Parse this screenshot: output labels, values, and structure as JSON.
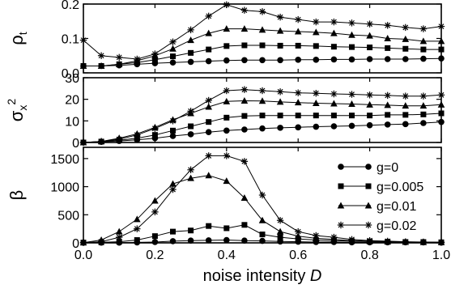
{
  "chart_data": {
    "type": "line",
    "x": [
      0.0,
      0.05,
      0.1,
      0.15,
      0.2,
      0.25,
      0.3,
      0.35,
      0.4,
      0.45,
      0.5,
      0.55,
      0.6,
      0.65,
      0.7,
      0.75,
      0.8,
      0.85,
      0.9,
      0.95,
      1.0
    ],
    "xlabel_main": "noise intensity ",
    "xlabel_var": "D",
    "xlim": [
      0.0,
      1.0
    ],
    "xticks": [
      0.0,
      0.2,
      0.4,
      0.6,
      0.8,
      1.0
    ],
    "xtick_labels": [
      "0.0",
      "0.2",
      "0.4",
      "0.6",
      "0.8",
      "1.0"
    ],
    "legend_position": "right",
    "series_styles": [
      {
        "marker": "circle"
      },
      {
        "marker": "square"
      },
      {
        "marker": "triangle"
      },
      {
        "marker": "star"
      }
    ],
    "legend": [
      "g=0",
      "g=0.005",
      "g=0.01",
      "g=0.02"
    ],
    "panels": [
      {
        "ylabel_main": "ρ",
        "ylabel_sub": "t",
        "ylim": [
          0,
          0.2
        ],
        "yticks": [
          0.0,
          0.1,
          0.2
        ],
        "ytick_labels": [
          "0.0",
          "0.1",
          "0.2"
        ],
        "series": [
          {
            "values": [
              0.02,
              0.02,
              0.022,
              0.025,
              0.028,
              0.03,
              0.032,
              0.034,
              0.036,
              0.037,
              0.037,
              0.037,
              0.038,
              0.038,
              0.039,
              0.039,
              0.04,
              0.04,
              0.04,
              0.041,
              0.042
            ]
          },
          {
            "values": [
              0.02,
              0.02,
              0.025,
              0.03,
              0.038,
              0.048,
              0.058,
              0.068,
              0.078,
              0.08,
              0.08,
              0.079,
              0.079,
              0.078,
              0.076,
              0.075,
              0.074,
              0.072,
              0.07,
              0.068,
              0.068
            ]
          },
          {
            "values": [
              0.02,
              0.02,
              0.025,
              0.035,
              0.05,
              0.07,
              0.095,
              0.115,
              0.128,
              0.128,
              0.125,
              0.122,
              0.12,
              0.118,
              0.115,
              0.11,
              0.108,
              0.1,
              0.098,
              0.092,
              0.092
            ]
          },
          {
            "values": [
              0.095,
              0.05,
              0.045,
              0.04,
              0.055,
              0.09,
              0.125,
              0.165,
              0.198,
              0.182,
              0.178,
              0.162,
              0.155,
              0.148,
              0.148,
              0.145,
              0.142,
              0.138,
              0.132,
              0.128,
              0.135
            ]
          }
        ]
      },
      {
        "ylabel_main": "σ",
        "ylabel_sub": "x",
        "ylabel_sup": "2",
        "ylim": [
          0,
          30
        ],
        "yticks": [
          0,
          10,
          20,
          30
        ],
        "ytick_labels": [
          "0",
          "10",
          "20",
          "30"
        ],
        "series": [
          {
            "values": [
              0,
              0.3,
              0.7,
              1.2,
              2.0,
              3.0,
              3.8,
              4.8,
              5.5,
              6.0,
              6.5,
              6.8,
              7.0,
              7.3,
              7.5,
              7.7,
              8.0,
              8.3,
              8.5,
              9.0,
              9.5
            ]
          },
          {
            "values": [
              0,
              0.4,
              1.0,
              2.0,
              3.5,
              5.5,
              7.5,
              9.5,
              11.5,
              12.3,
              12.5,
              12.5,
              12.5,
              12.5,
              12.5,
              12.5,
              12.5,
              12.8,
              12.8,
              13.0,
              13.5
            ]
          },
          {
            "values": [
              0,
              0.5,
              2.0,
              4.0,
              7.0,
              10.5,
              13.5,
              16.5,
              19.0,
              19.3,
              19.2,
              18.8,
              18.5,
              18.2,
              18.0,
              17.8,
              17.5,
              17.3,
              17.0,
              17.0,
              17.5
            ]
          },
          {
            "values": [
              0,
              0.5,
              1.5,
              3.5,
              6.5,
              10.0,
              14.5,
              19.5,
              24.0,
              24.5,
              24.0,
              23.5,
              23.0,
              22.8,
              22.5,
              22.3,
              22.0,
              21.8,
              21.5,
              21.5,
              22.0
            ]
          }
        ]
      },
      {
        "ylabel_main": "β",
        "ylim": [
          0,
          1700
        ],
        "yticks": [
          0,
          500,
          1000,
          1500
        ],
        "ytick_labels": [
          "0",
          "500",
          "1000",
          "1500"
        ],
        "series": [
          {
            "values": [
              5,
              5,
              5,
              8,
              15,
              30,
              40,
              45,
              50,
              40,
              35,
              25,
              20,
              15,
              15,
              10,
              10,
              10,
              10,
              10,
              5
            ]
          },
          {
            "values": [
              5,
              10,
              20,
              50,
              120,
              200,
              220,
              300,
              260,
              320,
              150,
              100,
              70,
              50,
              40,
              30,
              25,
              20,
              15,
              15,
              10
            ]
          },
          {
            "values": [
              5,
              50,
              200,
              420,
              750,
              1050,
              1150,
              1200,
              1100,
              800,
              400,
              200,
              120,
              80,
              60,
              40,
              30,
              20,
              15,
              10,
              10
            ]
          },
          {
            "values": [
              5,
              20,
              100,
              250,
              550,
              950,
              1300,
              1550,
              1550,
              1450,
              850,
              400,
              200,
              130,
              100,
              60,
              40,
              30,
              20,
              15,
              10
            ]
          }
        ]
      }
    ]
  }
}
